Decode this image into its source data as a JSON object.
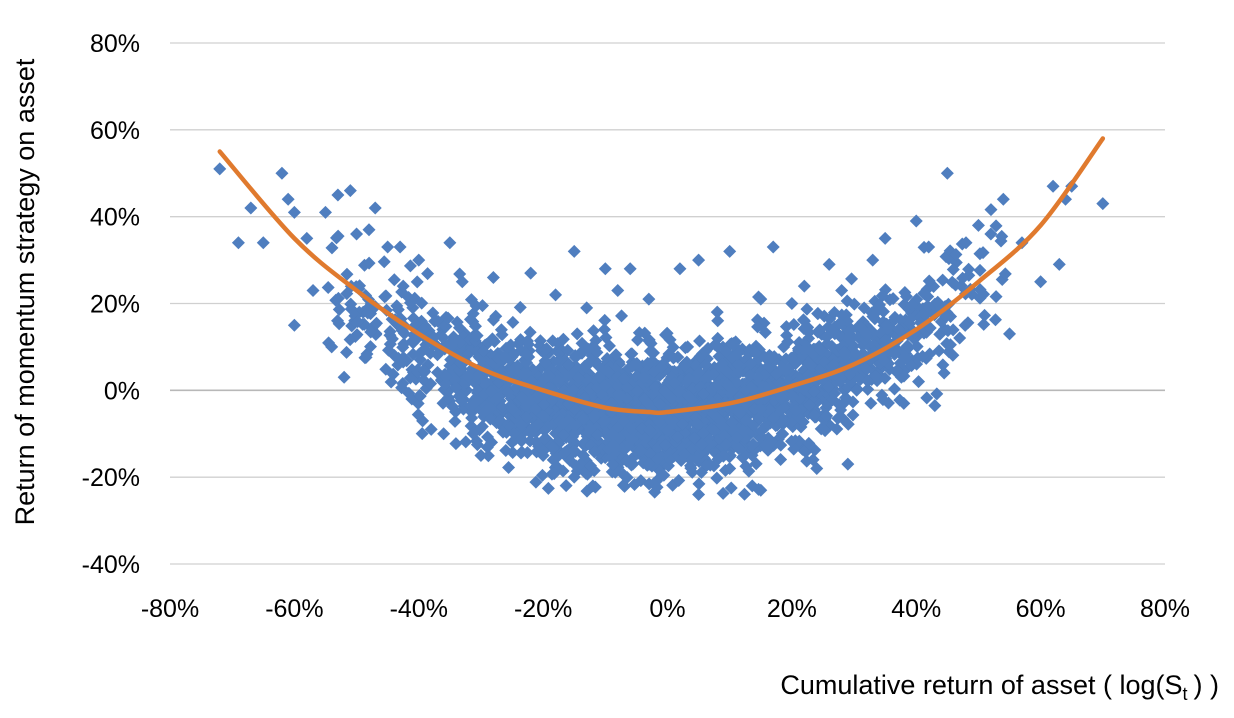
{
  "chart_data": {
    "type": "scatter",
    "title": "",
    "xlabel_main": "Cumulative return of asset ( log(S",
    "xlabel_sub": "t",
    "xlabel_tail": ") )",
    "ylabel": "Return of momentum strategy on asset",
    "xlim": [
      -0.8,
      0.8
    ],
    "ylim": [
      -0.4,
      0.8
    ],
    "x_ticks": [
      -0.8,
      -0.6,
      -0.4,
      -0.2,
      0.0,
      0.2,
      0.4,
      0.6,
      0.8
    ],
    "y_ticks": [
      -0.4,
      -0.2,
      0.0,
      0.2,
      0.4,
      0.6,
      0.8
    ],
    "x_tick_labels": [
      "-80%",
      "-60%",
      "-40%",
      "-20%",
      "0%",
      "20%",
      "40%",
      "60%",
      "80%"
    ],
    "y_tick_labels": [
      "-40%",
      "-20%",
      "0%",
      "20%",
      "40%",
      "60%",
      "80%"
    ],
    "grid": true,
    "legend": "none",
    "colors": {
      "points": "#4f7ebf",
      "fit_line": "#e07a2e",
      "grid": "#d0d0d0"
    },
    "marker": "diamond",
    "series": [
      {
        "kind": "scatter",
        "note_points": "Representative points: the original figure shows several thousand observations; outliers are listed individually and the dense core is summarized by band parameters.",
        "points": [
          [
            -0.72,
            0.51
          ],
          [
            -0.69,
            0.34
          ],
          [
            -0.67,
            0.42
          ],
          [
            -0.65,
            0.34
          ],
          [
            -0.62,
            0.5
          ],
          [
            -0.61,
            0.44
          ],
          [
            -0.6,
            0.41
          ],
          [
            -0.6,
            0.15
          ],
          [
            -0.58,
            0.35
          ],
          [
            -0.57,
            0.23
          ],
          [
            -0.55,
            0.41
          ],
          [
            -0.54,
            0.1
          ],
          [
            -0.53,
            0.45
          ],
          [
            -0.52,
            0.03
          ],
          [
            -0.51,
            0.46
          ],
          [
            -0.5,
            0.36
          ],
          [
            -0.48,
            0.37
          ],
          [
            -0.47,
            0.42
          ],
          [
            -0.45,
            0.33
          ],
          [
            -0.43,
            0.33
          ],
          [
            -0.4,
            0.3
          ],
          [
            -0.38,
            -0.09
          ],
          [
            -0.36,
            -0.1
          ],
          [
            -0.35,
            0.34
          ],
          [
            -0.33,
            0.25
          ],
          [
            -0.3,
            -0.15
          ],
          [
            -0.28,
            0.26
          ],
          [
            -0.25,
            -0.12
          ],
          [
            -0.22,
            0.27
          ],
          [
            -0.2,
            -0.15
          ],
          [
            -0.18,
            0.22
          ],
          [
            -0.15,
            0.32
          ],
          [
            -0.15,
            -0.2
          ],
          [
            -0.13,
            0.19
          ],
          [
            -0.12,
            -0.22
          ],
          [
            -0.1,
            0.28
          ],
          [
            -0.08,
            0.23
          ],
          [
            -0.06,
            0.28
          ],
          [
            -0.03,
            0.21
          ],
          [
            0.02,
            0.28
          ],
          [
            0.05,
            0.3
          ],
          [
            0.05,
            -0.24
          ],
          [
            0.08,
            0.18
          ],
          [
            0.1,
            0.32
          ],
          [
            0.1,
            -0.18
          ],
          [
            0.15,
            0.21
          ],
          [
            0.15,
            -0.23
          ],
          [
            0.17,
            0.33
          ],
          [
            0.2,
            0.2
          ],
          [
            0.22,
            0.24
          ],
          [
            0.24,
            -0.18
          ],
          [
            0.26,
            0.29
          ],
          [
            0.28,
            0.23
          ],
          [
            0.29,
            -0.17
          ],
          [
            0.33,
            0.3
          ],
          [
            0.35,
            0.35
          ],
          [
            0.38,
            -0.03
          ],
          [
            0.4,
            0.39
          ],
          [
            0.42,
            0.33
          ],
          [
            0.45,
            0.5
          ],
          [
            0.48,
            0.34
          ],
          [
            0.5,
            0.38
          ],
          [
            0.52,
            0.36
          ],
          [
            0.54,
            0.44
          ],
          [
            0.55,
            0.13
          ],
          [
            0.57,
            0.34
          ],
          [
            0.6,
            0.25
          ],
          [
            0.62,
            0.47
          ],
          [
            0.63,
            0.29
          ],
          [
            0.64,
            0.44
          ],
          [
            0.65,
            0.47
          ],
          [
            0.7,
            0.43
          ]
        ],
        "core_band": {
          "n_points": 3000,
          "x_mean": 0.0,
          "x_sd": 0.22,
          "x_range": [
            -0.55,
            0.55
          ],
          "y_mean_curve": "1.05*(x+0.03)^2 - 0.05",
          "y_sd": 0.07
        }
      },
      {
        "kind": "line",
        "x": [
          -0.72,
          -0.6,
          -0.5,
          -0.4,
          -0.3,
          -0.2,
          -0.1,
          -0.03,
          0.0,
          0.1,
          0.2,
          0.3,
          0.4,
          0.5,
          0.6,
          0.7
        ],
        "y": [
          0.55,
          0.35,
          0.23,
          0.13,
          0.05,
          0.0,
          -0.04,
          -0.05,
          -0.05,
          -0.03,
          0.01,
          0.06,
          0.14,
          0.25,
          0.38,
          0.58
        ]
      }
    ]
  }
}
